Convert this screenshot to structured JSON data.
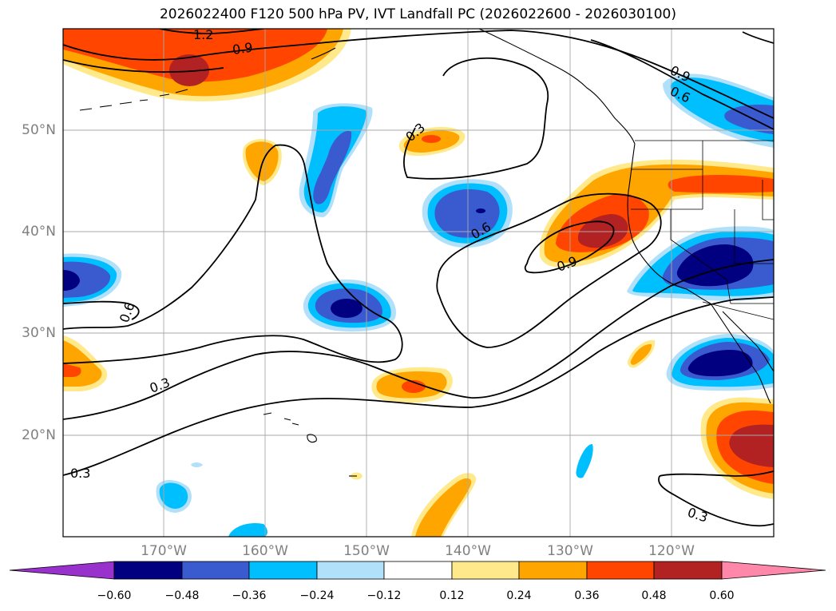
{
  "title": "2026022400 F120 500 hPa PV, IVT Landfall PC (2026022600 - 2026030100)",
  "map": {
    "lat_labels": [
      "50°N",
      "40°N",
      "30°N",
      "20°N"
    ],
    "lon_labels": [
      "170°W",
      "160°W",
      "150°W",
      "140°W",
      "130°W",
      "120°W"
    ],
    "contour_labels": [
      "1.2",
      "0.9",
      "0.9",
      "0.6",
      "0.3",
      "0.6",
      "0.9",
      "0.6",
      "0.3",
      "0.3",
      "0.3"
    ],
    "fill_colors": {
      "neg_060": "#000080",
      "neg_048": "#3a5bd0",
      "neg_036": "#00bfff",
      "neg_024": "#b0e0fa",
      "pos_012": "#ffe98a",
      "pos_024": "#ffa500",
      "pos_036": "#ff4500",
      "pos_048": "#b22222"
    }
  },
  "colorbar": {
    "colors": [
      "#9932cc",
      "#000080",
      "#3a5bd0",
      "#00bfff",
      "#b0e0fa",
      "#ffffff",
      "#ffe98a",
      "#ffa500",
      "#ff4500",
      "#b22222",
      "#ff88aa"
    ],
    "tick_labels": [
      "−0.60",
      "−0.48",
      "−0.36",
      "−0.24",
      "−0.12",
      "0.12",
      "0.24",
      "0.36",
      "0.48",
      "0.60"
    ]
  }
}
